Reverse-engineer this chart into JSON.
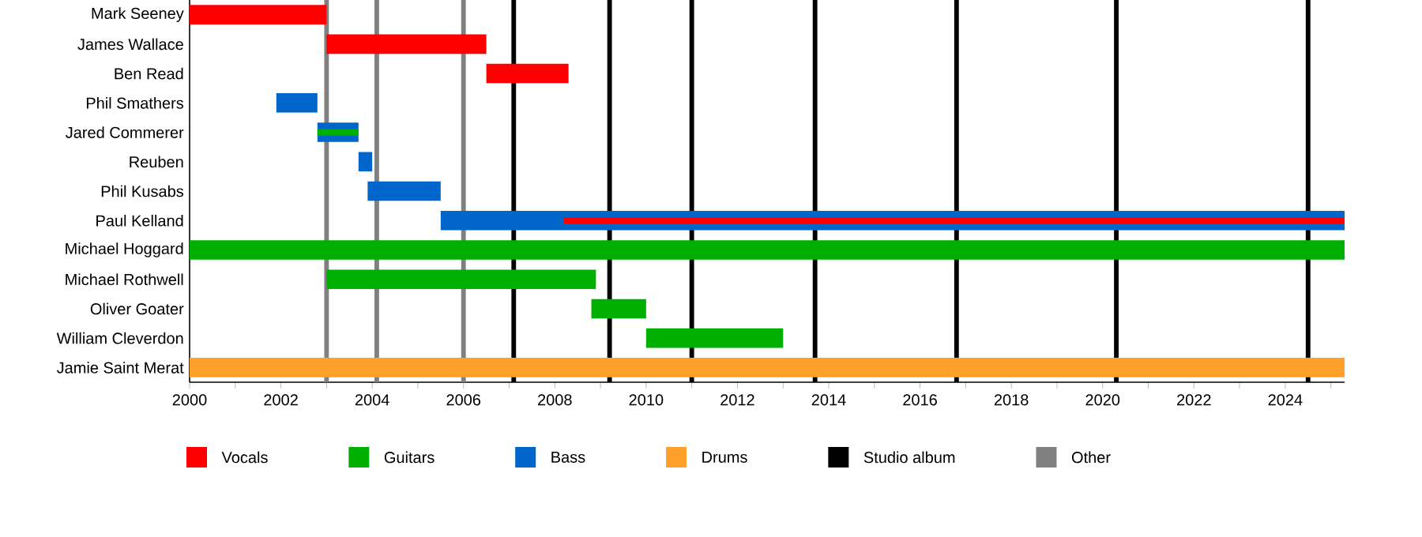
{
  "chart_data": {
    "type": "bar",
    "orientation": "horizontal",
    "categories": [
      "Mark Seeney",
      "James Wallace",
      "Ben Read",
      "Phil Smathers",
      "Jared Commerer",
      "Reuben",
      "Phil Kusabs",
      "Paul Kelland",
      "Michael Hoggard",
      "Michael Rothwell",
      "Oliver Goater",
      "William Cleverdon",
      "Jamie Saint Merat"
    ],
    "series": [
      {
        "name": "Vocals",
        "color": "#ff0000",
        "values": [
          3.0,
          3.5,
          1.8,
          null,
          null,
          null,
          null,
          17.1,
          null,
          null,
          null,
          null,
          null
        ],
        "base": [
          2000,
          2003.0,
          2006.5,
          null,
          null,
          null,
          null,
          2008.2,
          null,
          null,
          null,
          null,
          null
        ]
      },
      {
        "name": "Guitars",
        "color": "#00b000",
        "values": [
          null,
          null,
          null,
          null,
          0.9,
          null,
          null,
          null,
          25.3,
          5.9,
          1.2,
          3.0,
          null
        ],
        "base": [
          null,
          null,
          null,
          null,
          2002.8,
          null,
          null,
          null,
          2000,
          2003.0,
          2008.8,
          2010.0,
          null
        ]
      },
      {
        "name": "Bass",
        "color": "#0066cc",
        "values": [
          null,
          null,
          null,
          0.9,
          0.9,
          0.3,
          1.6,
          19.8,
          null,
          null,
          null,
          null,
          null
        ],
        "base": [
          null,
          null,
          null,
          2001.9,
          2002.8,
          2003.7,
          2003.9,
          2005.5,
          null,
          null,
          null,
          null,
          null
        ]
      },
      {
        "name": "Drums",
        "color": "#ffa02a",
        "values": [
          null,
          null,
          null,
          null,
          null,
          null,
          null,
          null,
          null,
          null,
          null,
          null,
          25.3
        ],
        "base": [
          null,
          null,
          null,
          null,
          null,
          null,
          null,
          null,
          null,
          null,
          null,
          null,
          2000
        ]
      }
    ],
    "xlim": [
      2000,
      2025.3
    ],
    "xticks": [
      2000,
      {
        "value": 2001,
        "label": null
      },
      2002,
      {
        "value": 2003,
        "label": null
      },
      2004,
      {
        "value": 2005,
        "label": null
      },
      2006,
      {
        "value": 2007,
        "label": null
      },
      2008,
      {
        "value": 2009,
        "label": null
      },
      2010,
      {
        "value": 2011,
        "label": null
      },
      2012,
      {
        "value": 2013,
        "label": null
      },
      2014,
      {
        "value": 2015,
        "label": null
      },
      2016,
      {
        "value": 2017,
        "label": null
      },
      2018,
      {
        "value": 2019,
        "label": null
      },
      2020,
      {
        "value": 2021,
        "label": null
      },
      2022,
      {
        "value": 2023,
        "label": null
      },
      2024,
      {
        "value": 2025,
        "label": null
      }
    ],
    "ref_lines": [
      {
        "axis": "x",
        "value": 2007.1,
        "label": "Studio album",
        "color": "#000000"
      },
      {
        "axis": "x",
        "value": 2009.2,
        "color": "#000000"
      },
      {
        "axis": "x",
        "value": 2011.0,
        "color": "#000000"
      },
      {
        "axis": "x",
        "value": 2013.7,
        "color": "#000000"
      },
      {
        "axis": "x",
        "value": 2016.8,
        "color": "#000000"
      },
      {
        "axis": "x",
        "value": 2020.3,
        "color": "#000000"
      },
      {
        "axis": "x",
        "value": 2024.5,
        "color": "#000000"
      },
      {
        "axis": "x",
        "value": 2003.0,
        "label": "Other",
        "color": "#808080"
      },
      {
        "axis": "x",
        "value": 2004.1,
        "color": "#808080"
      },
      {
        "axis": "x",
        "value": 2006.0,
        "color": "#808080"
      }
    ],
    "legend": "bottom"
  }
}
